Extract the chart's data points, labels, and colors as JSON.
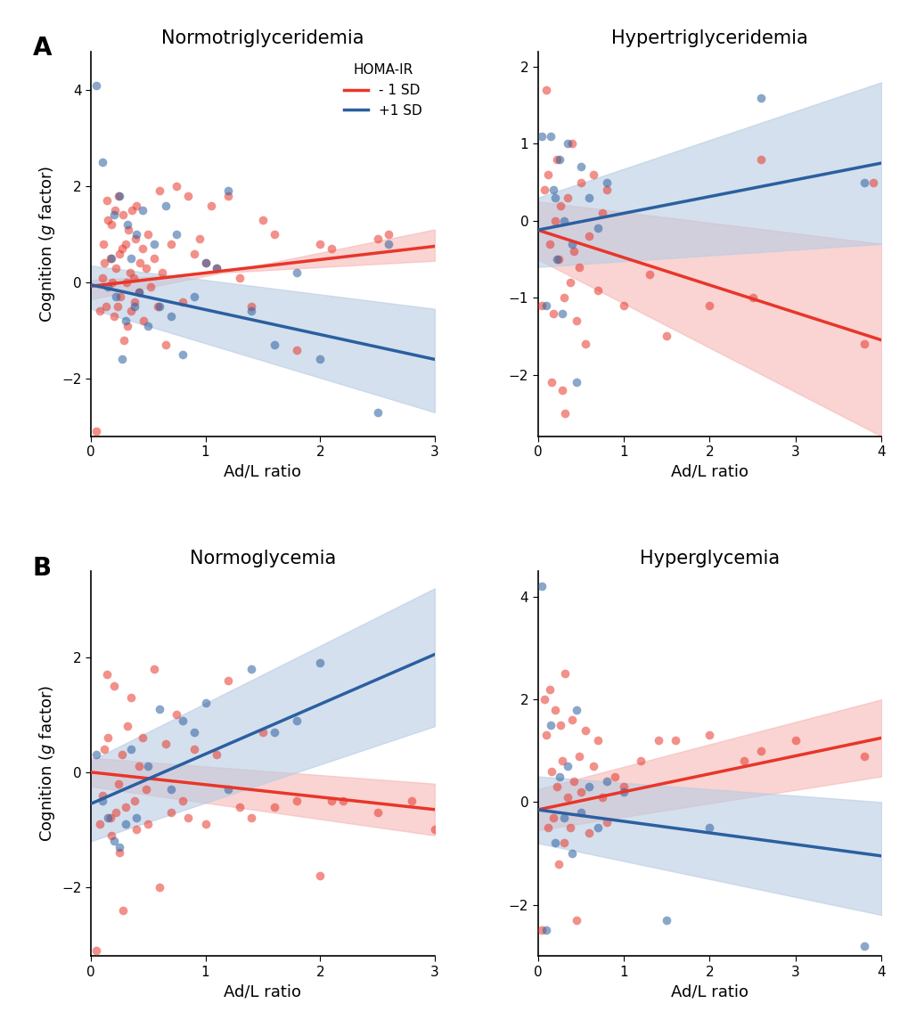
{
  "panels": [
    {
      "title": "Normotriglyceridemia",
      "label": "A",
      "xlim": [
        0,
        3
      ],
      "ylim": [
        -3.2,
        4.8
      ],
      "yticks": [
        -2,
        0,
        2,
        4
      ],
      "xticks": [
        0,
        1,
        2,
        3
      ],
      "red_line": [
        0.0,
        -0.08,
        3.0,
        0.75
      ],
      "blue_line": [
        0.0,
        -0.05,
        3.0,
        -1.6
      ],
      "red_ci": [
        [
          0.0,
          3.0
        ],
        [
          -0.35,
          1.1
        ],
        [
          0.05,
          0.45
        ]
      ],
      "blue_ci": [
        [
          0.0,
          3.0
        ],
        [
          -0.55,
          -2.7
        ],
        [
          0.35,
          -0.55
        ]
      ],
      "show_legend": true,
      "red_pts_x": [
        0.05,
        0.08,
        0.1,
        0.11,
        0.12,
        0.13,
        0.14,
        0.15,
        0.17,
        0.18,
        0.19,
        0.2,
        0.21,
        0.22,
        0.23,
        0.24,
        0.25,
        0.26,
        0.27,
        0.28,
        0.29,
        0.3,
        0.31,
        0.32,
        0.33,
        0.34,
        0.35,
        0.36,
        0.37,
        0.38,
        0.39,
        0.4,
        0.42,
        0.43,
        0.45,
        0.46,
        0.48,
        0.5,
        0.52,
        0.55,
        0.58,
        0.6,
        0.62,
        0.65,
        0.7,
        0.75,
        0.8,
        0.85,
        0.9,
        0.95,
        1.0,
        1.05,
        1.1,
        1.2,
        1.3,
        1.4,
        1.5,
        1.6,
        1.8,
        2.0,
        2.1,
        2.5,
        2.6
      ],
      "red_pts_y": [
        -3.1,
        -0.6,
        0.1,
        0.8,
        0.4,
        -0.5,
        1.7,
        1.3,
        0.5,
        1.2,
        0.0,
        -0.7,
        1.5,
        0.3,
        -0.5,
        1.8,
        0.6,
        -0.3,
        0.7,
        1.4,
        -1.2,
        0.8,
        0.0,
        -0.9,
        1.1,
        0.2,
        -0.6,
        1.5,
        0.1,
        -0.4,
        0.9,
        1.6,
        -0.2,
        0.4,
        0.7,
        -0.8,
        0.3,
        1.0,
        -0.1,
        0.5,
        -0.5,
        1.9,
        0.2,
        -1.3,
        0.8,
        2.0,
        -0.4,
        1.8,
        0.6,
        0.9,
        0.4,
        1.6,
        0.3,
        1.8,
        0.1,
        -0.5,
        1.3,
        1.0,
        -1.4,
        0.8,
        0.7,
        0.9,
        1.0
      ],
      "blue_pts_x": [
        0.05,
        0.1,
        0.15,
        0.18,
        0.2,
        0.22,
        0.25,
        0.27,
        0.3,
        0.32,
        0.35,
        0.38,
        0.4,
        0.42,
        0.45,
        0.5,
        0.55,
        0.6,
        0.65,
        0.7,
        0.75,
        0.8,
        0.9,
        1.0,
        1.1,
        1.2,
        1.4,
        1.6,
        1.8,
        2.0,
        2.5,
        2.6
      ],
      "blue_pts_y": [
        4.1,
        2.5,
        -0.1,
        0.5,
        1.4,
        -0.3,
        1.8,
        -1.6,
        -0.8,
        1.2,
        0.5,
        -0.5,
        1.0,
        -0.2,
        1.5,
        -0.9,
        0.8,
        -0.5,
        1.6,
        -0.7,
        1.0,
        -1.5,
        -0.3,
        0.4,
        0.3,
        1.9,
        -0.6,
        -1.3,
        0.2,
        -1.6,
        -2.7,
        0.8
      ]
    },
    {
      "title": "Hypertriglyceridemia",
      "label": "",
      "xlim": [
        0,
        4
      ],
      "ylim": [
        -2.8,
        2.2
      ],
      "yticks": [
        -2,
        -1,
        0,
        1,
        2
      ],
      "xticks": [
        0,
        1,
        2,
        3,
        4
      ],
      "red_line": [
        0.0,
        -0.12,
        4.0,
        -1.55
      ],
      "blue_line": [
        0.0,
        -0.12,
        4.0,
        0.75
      ],
      "red_ci": [
        [
          0.0,
          4.0
        ],
        [
          -0.5,
          -2.8
        ],
        [
          0.25,
          -0.3
        ]
      ],
      "blue_ci": [
        [
          0.0,
          4.0
        ],
        [
          -0.6,
          -0.3
        ],
        [
          0.3,
          1.8
        ]
      ],
      "show_legend": false,
      "red_pts_x": [
        0.05,
        0.08,
        0.1,
        0.12,
        0.14,
        0.16,
        0.18,
        0.2,
        0.22,
        0.24,
        0.26,
        0.28,
        0.3,
        0.32,
        0.35,
        0.38,
        0.4,
        0.42,
        0.45,
        0.48,
        0.5,
        0.55,
        0.6,
        0.65,
        0.7,
        0.75,
        0.8,
        1.0,
        1.3,
        1.5,
        2.0,
        2.5,
        2.6,
        3.8,
        3.9
      ],
      "red_pts_y": [
        -1.1,
        0.4,
        1.7,
        0.6,
        -0.3,
        -2.1,
        -1.2,
        0.0,
        0.8,
        -0.5,
        0.2,
        -2.2,
        -1.0,
        -2.5,
        0.3,
        -0.8,
        1.0,
        -0.4,
        -1.3,
        -0.6,
        0.5,
        -1.6,
        -0.2,
        0.6,
        -0.9,
        0.1,
        0.4,
        -1.1,
        -0.7,
        -1.5,
        -1.1,
        -1.0,
        0.8,
        -1.6,
        0.5
      ],
      "blue_pts_x": [
        0.05,
        0.1,
        0.15,
        0.18,
        0.2,
        0.22,
        0.25,
        0.28,
        0.3,
        0.35,
        0.4,
        0.45,
        0.5,
        0.6,
        0.7,
        0.8,
        2.6,
        3.8
      ],
      "blue_pts_y": [
        1.1,
        -1.1,
        1.1,
        0.4,
        0.3,
        -0.5,
        0.8,
        -1.2,
        0.0,
        1.0,
        -0.3,
        -2.1,
        0.7,
        0.3,
        -0.1,
        0.5,
        1.6,
        0.5
      ]
    },
    {
      "title": "Normoglycemia",
      "label": "B",
      "xlim": [
        0,
        3
      ],
      "ylim": [
        -3.2,
        3.5
      ],
      "yticks": [
        -2,
        0,
        2
      ],
      "xticks": [
        0,
        1,
        2,
        3
      ],
      "red_line": [
        0.0,
        0.0,
        3.0,
        -0.65
      ],
      "blue_line": [
        0.0,
        -0.55,
        3.0,
        2.05
      ],
      "red_ci": [
        [
          0.0,
          3.0
        ],
        [
          -0.25,
          -1.1
        ],
        [
          0.25,
          -0.2
        ]
      ],
      "blue_ci": [
        [
          0.0,
          3.0
        ],
        [
          -1.2,
          0.8
        ],
        [
          0.2,
          3.2
        ]
      ],
      "show_legend": false,
      "red_pts_x": [
        0.05,
        0.08,
        0.1,
        0.12,
        0.14,
        0.15,
        0.17,
        0.18,
        0.2,
        0.22,
        0.24,
        0.25,
        0.27,
        0.28,
        0.3,
        0.32,
        0.35,
        0.38,
        0.4,
        0.42,
        0.45,
        0.48,
        0.5,
        0.55,
        0.6,
        0.65,
        0.7,
        0.75,
        0.8,
        0.85,
        0.9,
        1.0,
        1.1,
        1.2,
        1.3,
        1.4,
        1.5,
        1.6,
        1.8,
        2.0,
        2.1,
        2.2,
        2.5,
        2.8,
        3.0
      ],
      "red_pts_y": [
        -3.1,
        -0.9,
        -0.4,
        0.4,
        1.7,
        0.6,
        -0.8,
        -1.1,
        1.5,
        -0.7,
        -0.2,
        -1.4,
        0.3,
        -2.4,
        -0.6,
        0.8,
        1.3,
        -0.5,
        -1.0,
        0.1,
        0.6,
        -0.3,
        -0.9,
        1.8,
        -2.0,
        0.5,
        -0.7,
        1.0,
        -0.5,
        -0.8,
        0.4,
        -0.9,
        0.3,
        1.6,
        -0.6,
        -0.8,
        0.7,
        -0.6,
        -0.5,
        -1.8,
        -0.5,
        -0.5,
        -0.7,
        -0.5,
        -1.0
      ],
      "blue_pts_x": [
        0.05,
        0.1,
        0.15,
        0.2,
        0.25,
        0.3,
        0.35,
        0.4,
        0.5,
        0.6,
        0.7,
        0.8,
        0.9,
        1.0,
        1.2,
        1.4,
        1.6,
        1.8,
        2.0
      ],
      "blue_pts_y": [
        0.3,
        -0.5,
        -0.8,
        -1.2,
        -1.3,
        -0.9,
        0.4,
        -0.8,
        0.1,
        1.1,
        -0.3,
        0.9,
        0.7,
        1.2,
        -0.3,
        1.8,
        0.7,
        0.9,
        1.9
      ]
    },
    {
      "title": "Hyperglycemia",
      "label": "",
      "xlim": [
        0,
        4
      ],
      "ylim": [
        -3.0,
        4.5
      ],
      "yticks": [
        -2,
        0,
        2,
        4
      ],
      "xticks": [
        0,
        1,
        2,
        3,
        4
      ],
      "red_line": [
        0.0,
        -0.15,
        4.0,
        1.25
      ],
      "blue_line": [
        0.0,
        -0.15,
        4.0,
        -1.05
      ],
      "red_ci": [
        [
          0.0,
          4.0
        ],
        [
          -0.55,
          0.5
        ],
        [
          0.25,
          2.0
        ]
      ],
      "blue_ci": [
        [
          0.0,
          4.0
        ],
        [
          -0.8,
          -2.2
        ],
        [
          0.5,
          0.0
        ]
      ],
      "show_legend": false,
      "red_pts_x": [
        0.05,
        0.08,
        0.1,
        0.12,
        0.14,
        0.16,
        0.18,
        0.2,
        0.22,
        0.24,
        0.26,
        0.28,
        0.3,
        0.32,
        0.35,
        0.38,
        0.4,
        0.42,
        0.45,
        0.48,
        0.5,
        0.55,
        0.6,
        0.65,
        0.7,
        0.75,
        0.8,
        0.9,
        1.0,
        1.2,
        1.4,
        1.6,
        2.0,
        2.4,
        2.6,
        3.0,
        3.8
      ],
      "red_pts_y": [
        -2.5,
        2.0,
        1.3,
        -0.5,
        2.2,
        0.6,
        -0.3,
        1.8,
        0.3,
        -1.2,
        1.5,
        0.8,
        -0.8,
        2.5,
        0.1,
        -0.5,
        1.6,
        0.4,
        -2.3,
        0.9,
        0.2,
        1.4,
        -0.6,
        0.7,
        1.2,
        0.1,
        -0.4,
        0.5,
        0.3,
        0.8,
        1.2,
        1.2,
        1.3,
        0.8,
        1.0,
        1.2,
        0.9
      ],
      "blue_pts_x": [
        0.05,
        0.1,
        0.15,
        0.2,
        0.25,
        0.3,
        0.35,
        0.4,
        0.45,
        0.5,
        0.6,
        0.7,
        0.8,
        1.0,
        1.5,
        2.0,
        3.8
      ],
      "blue_pts_y": [
        4.2,
        -2.5,
        1.5,
        -0.8,
        0.5,
        -0.3,
        0.7,
        -1.0,
        1.8,
        -0.2,
        0.3,
        -0.5,
        0.4,
        0.2,
        -2.3,
        -0.5,
        -2.8
      ]
    }
  ],
  "red_color": "#E8362A",
  "blue_color": "#2B5FA0",
  "red_alpha": 0.55,
  "blue_alpha": 0.55,
  "red_shade": "#F5B8B5",
  "blue_shade": "#B8CCE4",
  "marker_size": 7,
  "line_width": 2.5,
  "xlabel": "Ad/L ratio",
  "ylabel": "Cognition ($g$ factor)",
  "legend_title": "HOMA-IR",
  "legend_minus": "- 1 SD",
  "legend_plus": "+1 SD",
  "bg_color": "#FFFFFF"
}
